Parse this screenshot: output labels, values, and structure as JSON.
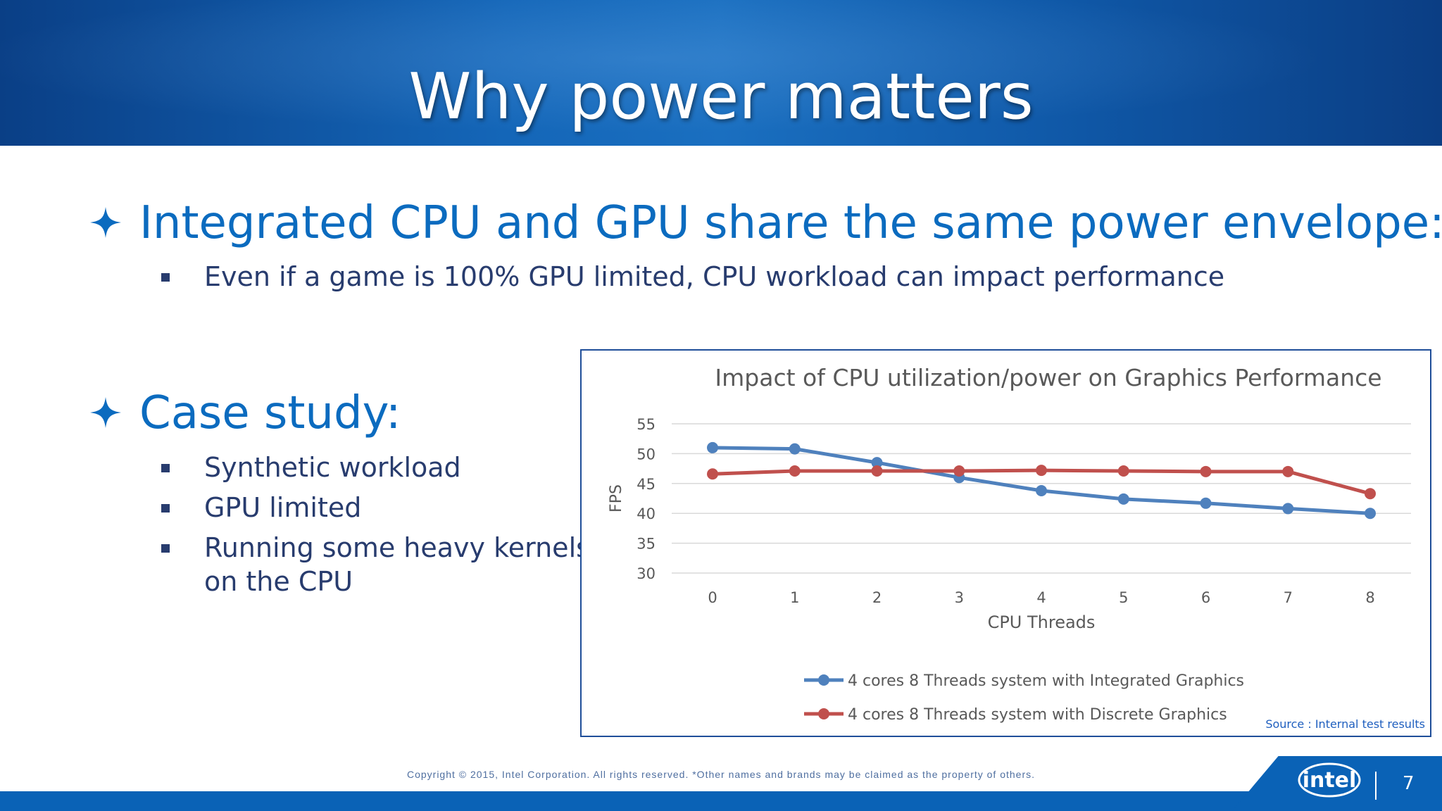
{
  "slide": {
    "title": "Why power matters",
    "bullets": [
      {
        "text": "Integrated CPU and GPU share the same power envelope:",
        "sub": [
          "Even if a game is 100% GPU limited, CPU workload can impact performance"
        ]
      },
      {
        "text": "Case study:",
        "sub": [
          "Synthetic workload",
          "GPU limited",
          "Running some heavy kernels",
          "on the CPU"
        ]
      }
    ]
  },
  "chart_data": {
    "type": "line",
    "title": "Impact of CPU utilization/power on Graphics Performance",
    "xlabel": "CPU Threads",
    "ylabel": "FPS",
    "x": [
      0,
      1,
      2,
      3,
      4,
      5,
      6,
      7,
      8
    ],
    "ylim": [
      30,
      55
    ],
    "yticks": [
      30,
      35,
      40,
      45,
      50,
      55
    ],
    "grid": true,
    "legend_position": "bottom",
    "series": [
      {
        "name": "4 cores 8 Threads system with Integrated Graphics",
        "color": "#4f81bd",
        "values": [
          51.0,
          50.8,
          48.5,
          46.0,
          43.8,
          42.4,
          41.7,
          40.8,
          40.0
        ]
      },
      {
        "name": "4 cores 8 Threads system with Discrete Graphics",
        "color": "#c0504d",
        "values": [
          46.6,
          47.1,
          47.1,
          47.1,
          47.2,
          47.1,
          47.0,
          47.0,
          43.3
        ]
      }
    ],
    "source_note": "Source : Internal test results"
  },
  "footer": {
    "copyright": "Copyright ©  2015, Intel Corporation. All rights reserved. *Other names and brands may be claimed as the property of others.",
    "page_number": "7",
    "logo_text": "intel"
  },
  "colors": {
    "header_blue": "#1466b8",
    "bullet_blue": "#0b6bbf",
    "text_navy": "#283c6e"
  }
}
